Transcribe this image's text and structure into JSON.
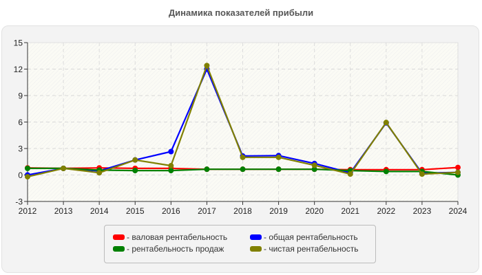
{
  "chart_data": {
    "type": "line",
    "title": "Динамика показателей прибыли",
    "xlabel": "",
    "ylabel": "",
    "x": [
      "2012",
      "2013",
      "2014",
      "2015",
      "2016",
      "2017",
      "2018",
      "2019",
      "2020",
      "2021",
      "2022",
      "2023",
      "2024"
    ],
    "ylim": [
      -3,
      15
    ],
    "yticks": [
      -3,
      0,
      3,
      6,
      9,
      12,
      15
    ],
    "grid": true,
    "legend_position": "bottom",
    "series": [
      {
        "name": "валовая рентабельность",
        "color": "#ff0000",
        "values": [
          0.8,
          0.75,
          0.8,
          0.75,
          0.75,
          0.65,
          0.65,
          0.65,
          0.65,
          0.6,
          0.6,
          0.6,
          0.85
        ]
      },
      {
        "name": "общая рентабельность",
        "color": "#0000ff",
        "values": [
          0.0,
          0.75,
          0.45,
          1.7,
          2.65,
          12.0,
          2.15,
          2.2,
          1.3,
          0.25,
          5.9,
          0.2,
          0.3
        ]
      },
      {
        "name": "рентабельность продаж",
        "color": "#008000",
        "values": [
          0.75,
          0.75,
          0.55,
          0.5,
          0.5,
          0.65,
          0.65,
          0.65,
          0.65,
          0.5,
          0.4,
          0.4,
          0.0
        ]
      },
      {
        "name": "чистая рентабельность",
        "color": "#808000",
        "values": [
          -0.2,
          0.75,
          0.25,
          1.7,
          1.05,
          12.4,
          2.0,
          2.0,
          1.1,
          0.1,
          5.95,
          0.1,
          0.3
        ]
      }
    ]
  },
  "legend": {
    "items": [
      {
        "label": "- валовая рентабельность",
        "color": "#ff0000"
      },
      {
        "label": "- общая рентабельность",
        "color": "#0000ff"
      },
      {
        "label": "- рентабельность продаж",
        "color": "#008000"
      },
      {
        "label": "- чистая рентабельность",
        "color": "#808000"
      }
    ]
  }
}
